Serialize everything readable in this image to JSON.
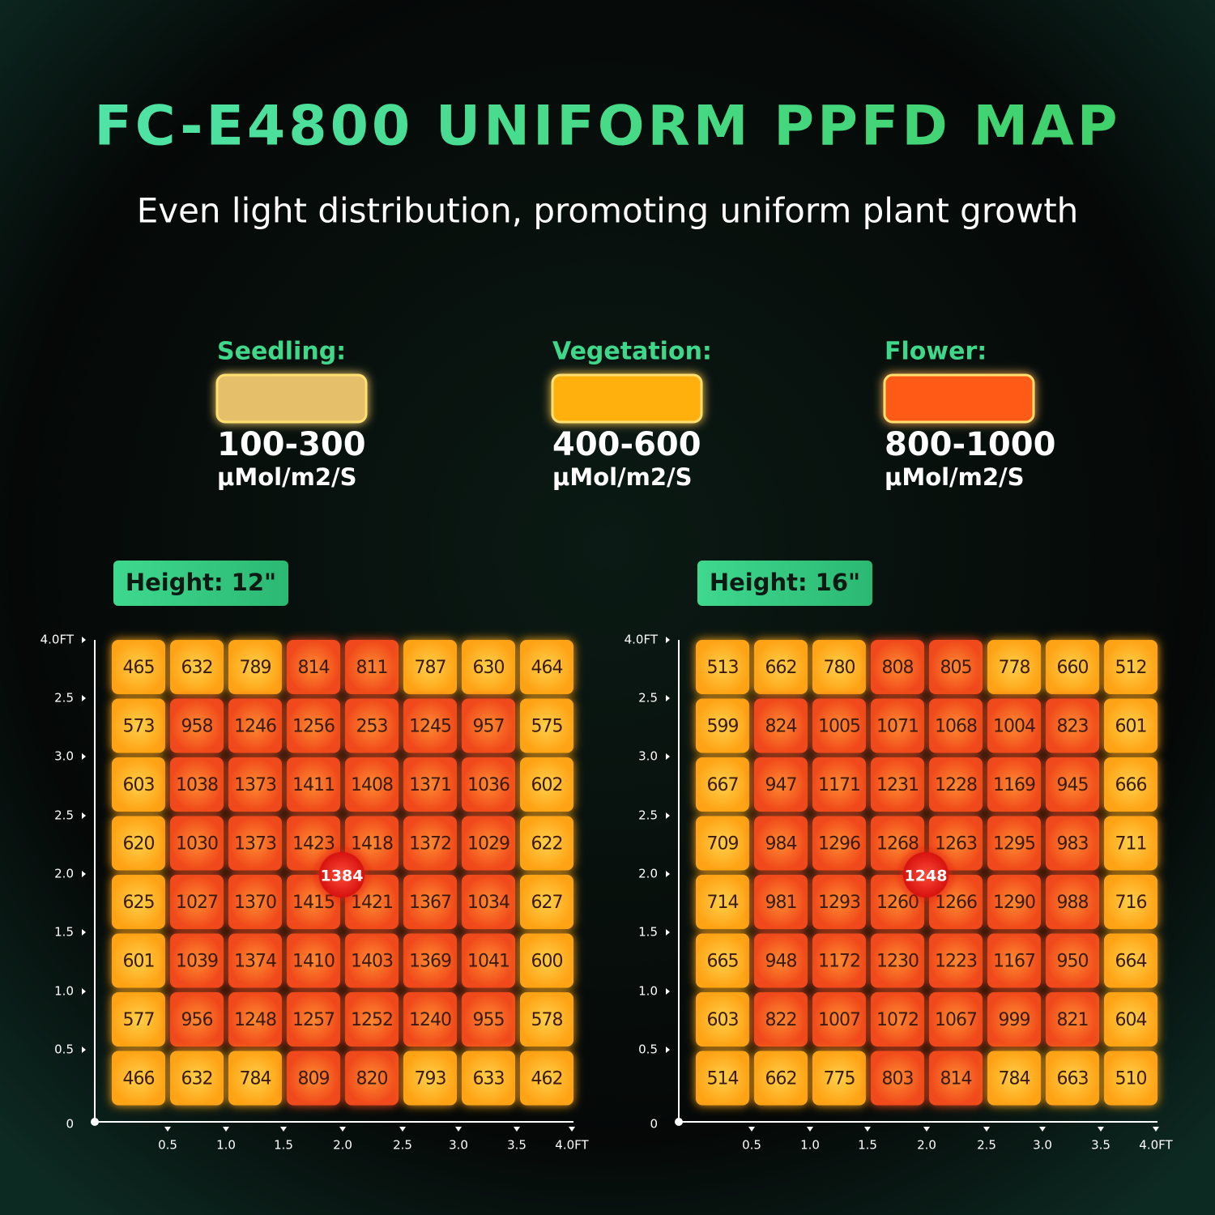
{
  "title": "FC-E4800 UNIFORM PPFD MAP",
  "subtitle": "Even light distribution, promoting uniform plant growth",
  "legend": [
    {
      "label": "Seedling:",
      "range": "100-300",
      "unit": "μMol/m2/S"
    },
    {
      "label": "Vegetation:",
      "range": "400-600",
      "unit": "μMol/m2/S"
    },
    {
      "label": "Flower:",
      "range": "800-1000",
      "unit": "μMol/m2/S"
    }
  ],
  "maps": [
    {
      "height": "Height: 12\"",
      "center": 1384,
      "y_labels": [
        "4.0FT",
        "2.5",
        "3.0",
        "2.5",
        "2.0",
        "1.5",
        "1.0",
        "0.5"
      ],
      "origin": "0",
      "x_labels": [
        "0.5",
        "1.0",
        "1.5",
        "2.0",
        "2.5",
        "3.0",
        "3.5",
        "4.0FT"
      ],
      "rows": [
        [
          465,
          632,
          789,
          814,
          811,
          787,
          630,
          464
        ],
        [
          573,
          958,
          1246,
          1256,
          253,
          1245,
          957,
          575
        ],
        [
          603,
          1038,
          1373,
          1411,
          1408,
          1371,
          1036,
          602
        ],
        [
          620,
          1030,
          1373,
          1423,
          1418,
          1372,
          1029,
          622
        ],
        [
          625,
          1027,
          1370,
          1415,
          1421,
          1367,
          1034,
          627
        ],
        [
          601,
          1039,
          1374,
          1410,
          1403,
          1369,
          1041,
          600
        ],
        [
          577,
          956,
          1248,
          1257,
          1252,
          1240,
          955,
          578
        ],
        [
          466,
          632,
          784,
          809,
          820,
          793,
          633,
          462
        ]
      ]
    },
    {
      "height": "Height: 16\"",
      "center": 1248,
      "y_labels": [
        "4.0FT",
        "2.5",
        "3.0",
        "2.5",
        "2.0",
        "1.5",
        "1.0",
        "0.5"
      ],
      "origin": "0",
      "x_labels": [
        "0.5",
        "1.0",
        "1.5",
        "2.0",
        "2.5",
        "3.0",
        "3.5",
        "4.0FT"
      ],
      "rows": [
        [
          513,
          662,
          780,
          808,
          805,
          778,
          660,
          512
        ],
        [
          599,
          824,
          1005,
          1071,
          1068,
          1004,
          823,
          601
        ],
        [
          667,
          947,
          1171,
          1231,
          1228,
          1169,
          945,
          666
        ],
        [
          709,
          984,
          1296,
          1268,
          1263,
          1295,
          983,
          711
        ],
        [
          714,
          981,
          1293,
          1260,
          1266,
          1290,
          988,
          716
        ],
        [
          665,
          948,
          1172,
          1230,
          1223,
          1167,
          950,
          664
        ],
        [
          603,
          822,
          1007,
          1072,
          1067,
          999,
          821,
          604
        ],
        [
          514,
          662,
          775,
          803,
          814,
          784,
          663,
          510
        ]
      ]
    }
  ]
}
